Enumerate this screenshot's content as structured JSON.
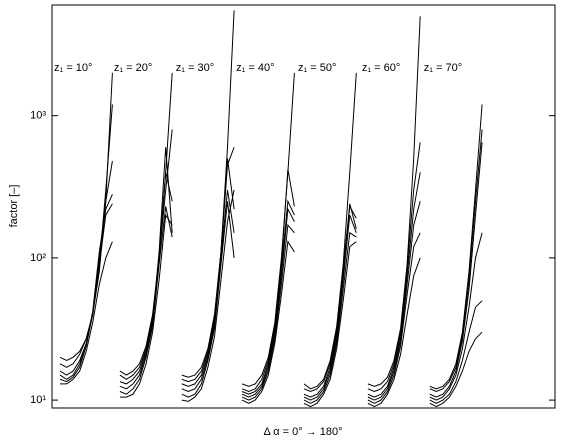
{
  "chart_data": {
    "type": "line",
    "xlabel": "Δ α = 0° → 180°",
    "ylabel": "factor [–]",
    "log_y": true,
    "color": "#000000",
    "xlim": [
      0,
      100
    ],
    "ylim": [
      8.8,
      6000
    ],
    "yticks": [
      {
        "value": 10,
        "label": "10¹"
      },
      {
        "value": 100,
        "label": "10²"
      },
      {
        "value": 1000,
        "label": "10³"
      }
    ],
    "groups": [
      {
        "label": "z₁ = 10°",
        "x": [
          1.6,
          2.9,
          4.2,
          5.5,
          6.8,
          8.1,
          9.4,
          10.7,
          12.0
        ],
        "series": [
          {
            "values": [
              20,
              19,
              20,
              22,
              27,
              40,
              80,
              250,
              2000
            ]
          },
          {
            "values": [
              18,
              17,
              18,
              21,
              27,
              40,
              90,
              300,
              1200
            ]
          },
          {
            "values": [
              16,
              15,
              16,
              19,
              25,
              40,
              100,
              250,
              480
            ]
          },
          {
            "values": [
              15,
              14,
              15,
              18,
              25,
              42,
              110,
              220,
              280
            ]
          },
          {
            "values": [
              14,
              13.5,
              14.5,
              17,
              24,
              40,
              90,
              200,
              240
            ]
          },
          {
            "values": [
              13,
              13,
              14,
              16,
              22,
              35,
              65,
              100,
              130
            ]
          }
        ]
      },
      {
        "label": "z₁ = 20°",
        "x": [
          13.5,
          14.8,
          16.1,
          17.4,
          18.7,
          20.0,
          21.3,
          22.6,
          23.9
        ],
        "series": [
          {
            "values": [
              16,
              15,
              16,
              18,
              24,
              40,
              100,
              400,
              2000
            ]
          },
          {
            "values": [
              15,
              14,
              15,
              17,
              23,
              38,
              100,
              300,
              800
            ]
          },
          {
            "values": [
              13.5,
              13,
              14,
              16,
              22,
              36,
              110,
              600,
              150
            ]
          },
          {
            "values": [
              12.5,
              12,
              13,
              15,
              21,
              35,
              100,
              400,
              250
            ]
          },
          {
            "values": [
              11.5,
              11,
              12,
              14,
              20,
              33,
              90,
              230,
              140
            ]
          },
          {
            "values": [
              10.5,
              10.5,
              11,
              13,
              18,
              30,
              70,
              200,
              170
            ]
          }
        ]
      },
      {
        "label": "z₁ = 30°",
        "x": [
          25.8,
          27.1,
          28.4,
          29.7,
          31.0,
          32.3,
          33.6,
          34.9,
          36.2
        ],
        "series": [
          {
            "values": [
              15,
              14.5,
              15,
              17,
              23,
              40,
              110,
              600,
              5500
            ]
          },
          {
            "values": [
              14,
              13.5,
              14,
              16,
              22,
              38,
              110,
              450,
              600
            ]
          },
          {
            "values": [
              13,
              12.5,
              13,
              15,
              21,
              36,
              110,
              500,
              220
            ]
          },
          {
            "values": [
              12,
              11.5,
              12,
              14,
              20,
              34,
              100,
              300,
              150
            ]
          },
          {
            "values": [
              11,
              10.5,
              11,
              13,
              19,
              32,
              90,
              250,
              100
            ]
          },
          {
            "values": [
              10,
              9.8,
              10.5,
              12,
              17,
              28,
              70,
              180,
              300
            ]
          }
        ]
      },
      {
        "label": "z₁ = 40°",
        "x": [
          37.8,
          39.1,
          40.4,
          41.7,
          43.0,
          44.3,
          45.6,
          46.9,
          48.2
        ],
        "series": [
          {
            "values": [
              13,
              12.5,
              13,
              15,
              20,
              35,
              100,
              400,
              2000
            ]
          },
          {
            "values": [
              12,
              11.5,
              12,
              14,
              19,
              33,
              90,
              420,
              230
            ]
          },
          {
            "values": [
              11.5,
              11,
              11.5,
              13,
              18,
              31,
              85,
              250,
              200
            ]
          },
          {
            "values": [
              11,
              10.5,
              11,
              12.5,
              17,
              29,
              75,
              220,
              180
            ]
          },
          {
            "values": [
              10.5,
              10,
              10.5,
              12,
              16,
              27,
              65,
              170,
              150
            ]
          },
          {
            "values": [
              10,
              9.5,
              10,
              11.5,
              15,
              25,
              55,
              130,
              110
            ]
          }
        ]
      },
      {
        "label": "z₁ = 50°",
        "x": [
          50.1,
          51.4,
          52.7,
          54.0,
          55.3,
          56.6,
          57.9,
          59.2,
          60.5
        ],
        "series": [
          {
            "values": [
              13,
              12,
              12.5,
              14,
              19,
              33,
              90,
              400,
              2000
            ]
          },
          {
            "values": [
              12,
              11.5,
              12,
              13.5,
              18,
              31,
              85,
              230,
              190
            ]
          },
          {
            "values": [
              11,
              10.5,
              11,
              12.5,
              17,
              29,
              80,
              240,
              160
            ]
          },
          {
            "values": [
              10.5,
              10,
              10.5,
              12,
              16,
              27,
              70,
              200,
              150
            ]
          },
          {
            "values": [
              10,
              9.5,
              10,
              11.5,
              15,
              25,
              60,
              150,
              140
            ]
          },
          {
            "values": [
              9.5,
              9,
              9.5,
              11,
              14,
              23,
              50,
              120,
              130
            ]
          }
        ]
      },
      {
        "label": "z₁ = 60°",
        "x": [
          62.8,
          64.1,
          65.4,
          66.7,
          68.0,
          69.3,
          70.6,
          71.9,
          73.2
        ],
        "series": [
          {
            "values": [
              13,
              12.5,
              13,
              14.5,
              19,
              32,
              90,
              500,
              5000
            ]
          },
          {
            "values": [
              12,
              11.5,
              12,
              13.5,
              18,
              30,
              85,
              300,
              650
            ]
          },
          {
            "values": [
              11,
              10.5,
              11,
              12.5,
              17,
              28,
              75,
              220,
              400
            ]
          },
          {
            "values": [
              10.5,
              10,
              10.5,
              12,
              16,
              26,
              65,
              170,
              250
            ]
          },
          {
            "values": [
              10,
              9.5,
              10,
              11.5,
              15,
              24,
              55,
              120,
              150
            ]
          },
          {
            "values": [
              9.5,
              9,
              9.5,
              11,
              14,
              21,
              40,
              75,
              100
            ]
          }
        ]
      },
      {
        "label": "z₁ = 70°",
        "x": [
          75.1,
          76.4,
          77.7,
          79.0,
          80.3,
          81.6,
          82.9,
          84.2,
          85.5
        ],
        "series": [
          {
            "values": [
              12.5,
              12,
              12.5,
              14,
              18,
              30,
              80,
              300,
              1200
            ]
          },
          {
            "values": [
              12,
              11.5,
              12,
              13.5,
              17,
              28,
              70,
              250,
              800
            ]
          },
          {
            "values": [
              11,
              10.5,
              11,
              12.5,
              16,
              26,
              60,
              200,
              650
            ]
          },
          {
            "values": [
              10.5,
              10,
              10.5,
              12,
              15,
              23,
              45,
              100,
              150
            ]
          },
          {
            "values": [
              10,
              9.5,
              10,
              11,
              13.5,
              19,
              30,
              45,
              50
            ]
          },
          {
            "values": [
              9.5,
              9,
              9.5,
              10.5,
              12.5,
              16,
              22,
              27,
              30
            ]
          }
        ]
      }
    ]
  }
}
